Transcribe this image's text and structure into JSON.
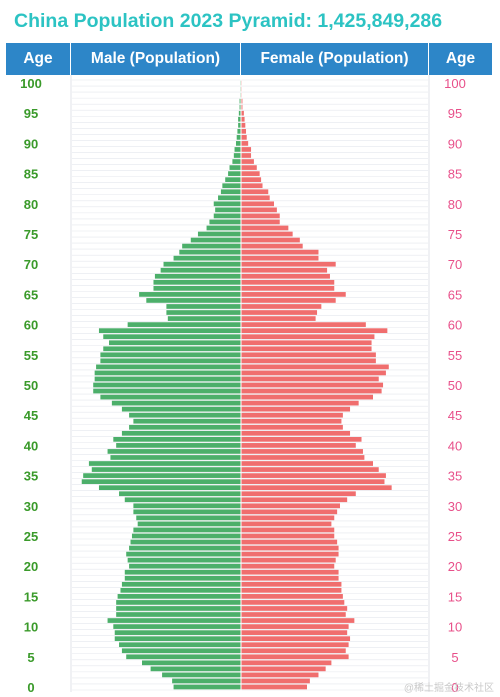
{
  "header": {
    "title": "China Population 2023 Pyramid: 1,425,849,286",
    "col_age_left": "Age",
    "col_male": "Male (Population)",
    "col_female": "Female (Population)",
    "col_age_right": "Age"
  },
  "colors": {
    "male": "#4caf6a",
    "female": "#f06e6e",
    "header_bg": "#2d86c8",
    "title": "#2cc3c3",
    "age_left": "#3a9a2a",
    "age_right": "#e8508a"
  },
  "watermark": "@稀土掘金技术社区",
  "chart_data": {
    "type": "bar",
    "orientation": "horizontal-pyramid",
    "title": "China Population 2023 Pyramid: 1,425,849,286",
    "y_tick_labels": [
      "0",
      "5",
      "10",
      "15",
      "20",
      "25",
      "30",
      "35",
      "40",
      "45",
      "50",
      "55",
      "60",
      "65",
      "70",
      "75",
      "80",
      "85",
      "90",
      "95",
      "100"
    ],
    "ages": [
      0,
      1,
      2,
      3,
      4,
      5,
      6,
      7,
      8,
      9,
      10,
      11,
      12,
      13,
      14,
      15,
      16,
      17,
      18,
      19,
      20,
      21,
      22,
      23,
      24,
      25,
      26,
      27,
      28,
      29,
      30,
      31,
      32,
      33,
      34,
      35,
      36,
      37,
      38,
      39,
      40,
      41,
      42,
      43,
      44,
      45,
      46,
      47,
      48,
      49,
      50,
      51,
      52,
      53,
      54,
      55,
      56,
      57,
      58,
      59,
      60,
      61,
      62,
      63,
      64,
      65,
      66,
      67,
      68,
      69,
      70,
      71,
      72,
      73,
      74,
      75,
      76,
      77,
      78,
      79,
      80,
      81,
      82,
      83,
      84,
      85,
      86,
      87,
      88,
      89,
      90,
      91,
      92,
      93,
      94,
      95,
      96,
      97,
      98,
      99,
      100
    ],
    "series": [
      {
        "name": "Male (Population)",
        "values": [
          4.7,
          4.8,
          5.5,
          6.3,
          6.9,
          8.0,
          8.3,
          8.5,
          8.8,
          8.8,
          8.9,
          9.3,
          8.7,
          8.7,
          8.7,
          8.6,
          8.4,
          8.3,
          8.1,
          8.1,
          7.8,
          7.9,
          8.0,
          7.8,
          7.7,
          7.6,
          7.5,
          7.2,
          7.3,
          7.5,
          7.5,
          8.1,
          8.5,
          9.9,
          11.1,
          11.0,
          10.4,
          10.6,
          9.1,
          9.3,
          8.7,
          8.9,
          8.3,
          7.8,
          7.5,
          7.8,
          8.3,
          9.0,
          9.8,
          10.3,
          10.3,
          10.2,
          10.2,
          10.1,
          9.8,
          9.8,
          9.6,
          9.2,
          9.6,
          9.9,
          7.9,
          5.1,
          5.2,
          5.2,
          6.6,
          7.1,
          6.1,
          6.1,
          6.0,
          5.6,
          5.4,
          4.7,
          4.3,
          4.1,
          3.5,
          3.0,
          2.4,
          2.2,
          1.9,
          1.8,
          1.9,
          1.6,
          1.4,
          1.3,
          1.1,
          0.9,
          0.8,
          0.6,
          0.5,
          0.45,
          0.35,
          0.3,
          0.25,
          0.2,
          0.2,
          0.15,
          0.1,
          0.1,
          0.05,
          0.05,
          0.05
        ]
      },
      {
        "name": "Female (Population)",
        "values": [
          4.6,
          4.8,
          5.4,
          5.9,
          6.3,
          7.5,
          7.3,
          7.5,
          7.6,
          7.4,
          7.5,
          7.9,
          7.3,
          7.4,
          7.2,
          7.1,
          7.0,
          7.0,
          6.8,
          6.8,
          6.5,
          6.6,
          6.8,
          6.8,
          6.7,
          6.5,
          6.5,
          6.3,
          6.5,
          6.7,
          6.9,
          7.4,
          8.0,
          10.5,
          10.0,
          10.1,
          9.6,
          9.2,
          8.6,
          8.5,
          8.0,
          8.4,
          7.6,
          7.1,
          7.0,
          7.1,
          7.6,
          8.2,
          9.2,
          9.8,
          9.9,
          9.6,
          10.1,
          10.3,
          9.4,
          9.4,
          9.1,
          9.1,
          9.3,
          10.2,
          8.7,
          5.2,
          5.3,
          5.6,
          6.6,
          7.3,
          6.5,
          6.5,
          6.2,
          6.0,
          6.6,
          5.4,
          5.4,
          4.3,
          4.1,
          3.6,
          3.3,
          2.7,
          2.7,
          2.5,
          2.3,
          2.0,
          1.9,
          1.5,
          1.4,
          1.3,
          1.1,
          0.9,
          0.7,
          0.7,
          0.5,
          0.4,
          0.35,
          0.3,
          0.25,
          0.2,
          0.1,
          0.1,
          0.05,
          0.05,
          0.05
        ]
      }
    ],
    "units": "millions (estimated from bar lengths)",
    "xlim": [
      0,
      11.5
    ],
    "legend": "header row",
    "grid": false
  }
}
